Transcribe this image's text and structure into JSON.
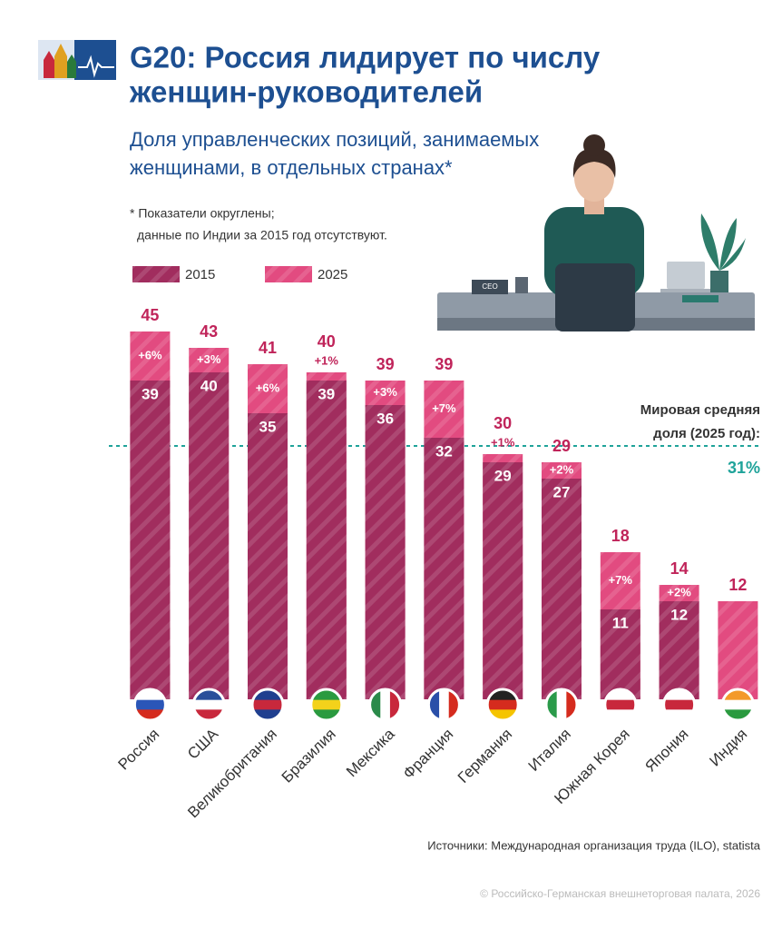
{
  "header": {
    "title_lines": [
      "G20: Россия лидирует по числу",
      "женщин-руководителей"
    ],
    "subtitle_lines": [
      "Доля управленческих позиций, занимаемых",
      "женщинами, в отдельных странах*"
    ],
    "footnote_lines": [
      "* Показатели округлены;",
      "данные по Индии за 2015 год отсутствуют."
    ],
    "illustration_text": "CEO"
  },
  "chart_data": {
    "type": "bar",
    "categories": [
      "Россия",
      "США",
      "Великобритания",
      "Бразилия",
      "Мексика",
      "Франция",
      "Германия",
      "Италия",
      "Южная Корея",
      "Япония",
      "Индия"
    ],
    "series": [
      {
        "name": "2015",
        "color": "#a12d5e",
        "values": [
          39,
          40,
          35,
          39,
          36,
          32,
          29,
          27,
          11,
          12,
          null
        ]
      },
      {
        "name": "2025",
        "color": "#e24b80",
        "values": [
          45,
          43,
          41,
          40,
          39,
          39,
          30,
          29,
          18,
          14,
          12
        ]
      }
    ],
    "change_labels": [
      "+6%",
      "+3%",
      "+6%",
      "+1%",
      "+3%",
      "+7%",
      "+1%",
      "+2%",
      "+7%",
      "+2%",
      null
    ],
    "ylim": [
      0,
      45
    ],
    "reference_line": {
      "value": 31,
      "label": "31%",
      "text_lines": [
        "Мировая средняя",
        "доля (2025 год):"
      ],
      "color": "#1fa39a"
    }
  },
  "footer": {
    "source": "Источники: Международная организация труда (ILO), statista",
    "copyright": "© Российско-Германская внешнеторговая палата, 2026"
  }
}
